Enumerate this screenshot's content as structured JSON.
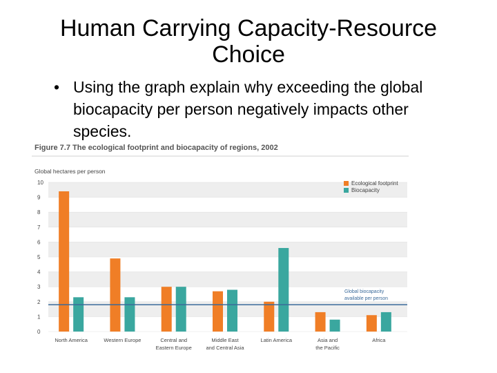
{
  "slide": {
    "title": "Human Carrying Capacity-Resource Choice",
    "bullet": "Using the graph explain why exceeding the global biocapacity per person negatively impacts other species."
  },
  "colors": {
    "footprint": "#f07e26",
    "biocapacity": "#3aa79f",
    "reference_line": "#3a6a9a",
    "grid_band": "#eeeeee"
  },
  "chart_data": {
    "type": "bar",
    "title": "Figure 7.7 The ecological footprint and biocapacity of regions, 2002",
    "ylabel": "Global hectares per person",
    "xlabel": "",
    "ylim": [
      0,
      10
    ],
    "yticks": [
      0,
      1,
      2,
      3,
      4,
      5,
      6,
      7,
      8,
      9,
      10
    ],
    "categories": [
      [
        "North America"
      ],
      [
        "Western Europe"
      ],
      [
        "Central and",
        "Eastern Europe"
      ],
      [
        "Middle East",
        "and Central Asia"
      ],
      [
        "Latin America"
      ],
      [
        "Asia and",
        "the Pacific"
      ],
      [
        "Africa"
      ]
    ],
    "series": [
      {
        "name": "Ecological footprint",
        "values": [
          9.4,
          4.9,
          3.0,
          2.7,
          2.0,
          1.3,
          1.1
        ]
      },
      {
        "name": "Biocapacity",
        "values": [
          2.3,
          2.3,
          3.0,
          2.8,
          5.6,
          0.8,
          1.3
        ]
      }
    ],
    "reference_line": {
      "value": 1.8,
      "label": [
        "Global biocapacity",
        "available per person"
      ]
    },
    "legend_position": "top-right"
  }
}
